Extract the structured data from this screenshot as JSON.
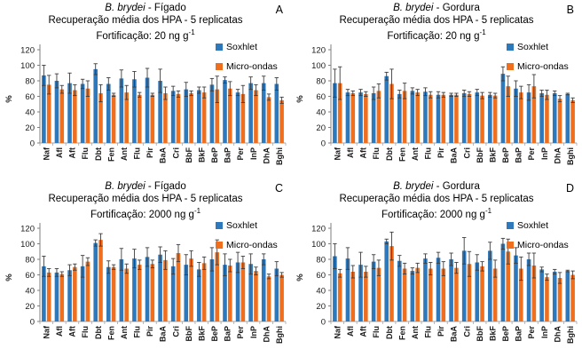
{
  "sep": " - ",
  "legend": [
    {
      "label": "Soxhlet",
      "color": "#2E78BC"
    },
    {
      "label": "Micro-ondas",
      "color": "#F06F1F"
    }
  ],
  "chart_data": [
    {
      "letter": "A",
      "type": "bar",
      "species": "B. brydei",
      "tissue": "Fígado",
      "subtitle": "Recuperação média dos HPA - 5 replicatas",
      "fortification_text": "Fortificação: 20 ng g",
      "fortification_sup": "-1",
      "ylabel": "%",
      "ylim": [
        0,
        120
      ],
      "yticks": [
        0,
        20,
        40,
        60,
        80,
        100,
        120
      ],
      "legend_position": "top-right",
      "grid": false,
      "categories": [
        "Naf",
        "Afl",
        "Aft",
        "Flu",
        "Dbt",
        "Fen",
        "Ant",
        "Flu",
        "Pir",
        "BaA",
        "Cri",
        "BbF",
        "BkF",
        "BeP",
        "BaP",
        "Per",
        "InP",
        "DhA",
        "Bghi"
      ],
      "series": [
        {
          "name": "Soxhlet",
          "color": "#2E78BC",
          "values": [
            87,
            80,
            77,
            76,
            95,
            76,
            83,
            82,
            84,
            80,
            67,
            69,
            68,
            75,
            81,
            65,
            77,
            77,
            76
          ],
          "errors": [
            13,
            9,
            13,
            6,
            7,
            8,
            11,
            10,
            12,
            15,
            6,
            9,
            4,
            8,
            4,
            4,
            8,
            9,
            8
          ]
        },
        {
          "name": "Micro-ondas",
          "color": "#F06F1F",
          "values": [
            75,
            69,
            68,
            70,
            64,
            62,
            65,
            62,
            62,
            64,
            63,
            64,
            65,
            69,
            70,
            63,
            68,
            59,
            55
          ],
          "errors": [
            12,
            5,
            7,
            10,
            11,
            2,
            9,
            3,
            2,
            8,
            4,
            3,
            7,
            17,
            9,
            11,
            7,
            4,
            4
          ]
        }
      ]
    },
    {
      "letter": "B",
      "type": "bar",
      "species": "B. brydei",
      "tissue": "Gordura",
      "subtitle": "Recuperação média dos HPA - 5 replicatas",
      "fortification_text": "Fortificação: 20 ng g",
      "fortification_sup": "-1",
      "ylabel": "%",
      "ylim": [
        0,
        120
      ],
      "yticks": [
        0,
        20,
        40,
        60,
        80,
        100,
        120
      ],
      "legend_position": "top-right",
      "grid": false,
      "categories": [
        "Naf",
        "Afl",
        "Aft",
        "Flu",
        "Dbt",
        "Fen",
        "Ant",
        "Flu",
        "Pir",
        "BaA",
        "Cri",
        "BbF",
        "BkF",
        "BeP",
        "BaP",
        "Per",
        "InP",
        "DhA",
        "Bghi"
      ],
      "series": [
        {
          "name": "Soxhlet",
          "color": "#2E78BC",
          "values": [
            77,
            65,
            65,
            64,
            86,
            63,
            67,
            66,
            62,
            62,
            64,
            65,
            62,
            89,
            70,
            65,
            64,
            64,
            63
          ],
          "errors": [
            18,
            4,
            4,
            8,
            5,
            5,
            4,
            5,
            4,
            2,
            4,
            4,
            3,
            9,
            10,
            10,
            4,
            3,
            1
          ]
        },
        {
          "name": "Micro-ondas",
          "color": "#F06F1F",
          "values": [
            77,
            64,
            63,
            67,
            76,
            67,
            65,
            62,
            62,
            62,
            63,
            61,
            61,
            73,
            65,
            73,
            62,
            57,
            55
          ],
          "errors": [
            21,
            3,
            3,
            9,
            19,
            10,
            4,
            4,
            3,
            2,
            3,
            4,
            3,
            13,
            8,
            15,
            6,
            4,
            3
          ]
        }
      ]
    },
    {
      "letter": "C",
      "type": "bar",
      "species": "B. brydei",
      "tissue": "Fígado",
      "subtitle": "Recuperação média dos HPA - 5 replicatas",
      "fortification_text": "Fortificação: 2000 ng g",
      "fortification_sup": "-1",
      "ylabel": "%",
      "ylim": [
        0,
        120
      ],
      "yticks": [
        0,
        20,
        40,
        60,
        80,
        100,
        120
      ],
      "legend_position": "top-right",
      "grid": false,
      "categories": [
        "Naf",
        "Afl",
        "Aft",
        "Flu",
        "Dbt",
        "Fen",
        "Ant",
        "Flu",
        "Pir",
        "BaA",
        "Cri",
        "BbF",
        "BkF",
        "BeP",
        "BaP",
        "Per",
        "InP",
        "DhA",
        "Bghi"
      ],
      "series": [
        {
          "name": "Soxhlet",
          "color": "#2E78BC",
          "values": [
            71,
            63,
            66,
            71,
            101,
            70,
            80,
            81,
            83,
            86,
            71,
            73,
            67,
            80,
            73,
            76,
            74,
            80,
            68
          ],
          "errors": [
            13,
            5,
            7,
            14,
            4,
            8,
            14,
            12,
            12,
            10,
            10,
            13,
            9,
            15,
            14,
            13,
            13,
            7,
            9
          ]
        },
        {
          "name": "Micro-ondas",
          "color": "#F06F1F",
          "values": [
            63,
            61,
            70,
            77,
            105,
            70,
            68,
            73,
            74,
            79,
            88,
            81,
            75,
            89,
            72,
            76,
            65,
            58,
            60
          ],
          "errors": [
            5,
            3,
            4,
            5,
            8,
            3,
            6,
            6,
            5,
            12,
            11,
            10,
            8,
            16,
            8,
            8,
            5,
            3,
            3
          ]
        }
      ]
    },
    {
      "letter": "D",
      "type": "bar",
      "species": "B. brydei",
      "tissue": "Gordura",
      "subtitle": "Recuperação média dos HPA - 5 replicatas",
      "fortification_text": "Fortificação: 2000 ng g",
      "fortification_sup": "-1",
      "ylabel": "%",
      "ylim": [
        0,
        120
      ],
      "yticks": [
        0,
        20,
        40,
        60,
        80,
        100,
        120
      ],
      "legend_position": "top-right",
      "grid": false,
      "categories": [
        "Naf",
        "Afl",
        "Aft",
        "Flu",
        "Dbt",
        "Fen",
        "Ant",
        "Flu",
        "Pir",
        "BaA",
        "Cri",
        "BbF",
        "BkF",
        "BeP",
        "BaP",
        "Per",
        "InP",
        "DhA",
        "Bghi"
      ],
      "series": [
        {
          "name": "Soxhlet",
          "color": "#2E78BC",
          "values": [
            84,
            81,
            73,
            77,
            103,
            78,
            65,
            81,
            82,
            80,
            91,
            76,
            91,
            100,
            85,
            80,
            67,
            64,
            65
          ],
          "errors": [
            16,
            14,
            16,
            9,
            3,
            7,
            4,
            6,
            7,
            8,
            17,
            10,
            11,
            7,
            10,
            8,
            3,
            3,
            1
          ]
        },
        {
          "name": "Micro-ondas",
          "color": "#F06F1F",
          "values": [
            62,
            64,
            64,
            69,
            97,
            68,
            69,
            68,
            68,
            69,
            74,
            71,
            68,
            90,
            68,
            72,
            57,
            56,
            60
          ],
          "errors": [
            5,
            8,
            7,
            10,
            18,
            7,
            6,
            8,
            9,
            7,
            16,
            6,
            11,
            16,
            15,
            16,
            4,
            7,
            5
          ]
        }
      ]
    }
  ]
}
